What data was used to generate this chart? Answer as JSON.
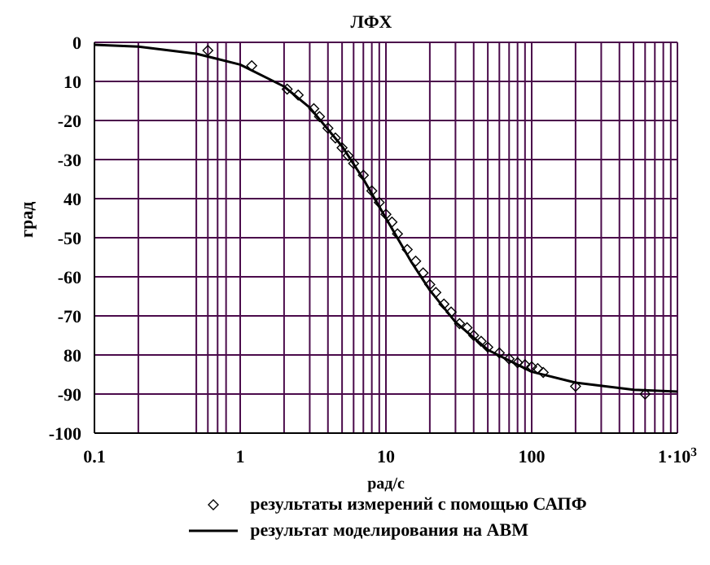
{
  "chart_data": {
    "type": "line",
    "title": "ЛФХ",
    "xlabel": "рад/с",
    "ylabel": "град",
    "log": "x",
    "grid": true,
    "legend": "bottom",
    "xlim": [
      0.1,
      1000
    ],
    "xticks": [
      0.1,
      {
        "value": 0.2,
        "label": null
      },
      {
        "value": 0.5,
        "label": null
      },
      {
        "value": 0.6,
        "label": null
      },
      {
        "value": 0.7,
        "label": null
      },
      {
        "value": 0.8,
        "label": null
      },
      1,
      {
        "value": 2,
        "label": null
      },
      {
        "value": 3,
        "label": null
      },
      {
        "value": 4,
        "label": null
      },
      {
        "value": 5,
        "label": null
      },
      {
        "value": 6,
        "label": null
      },
      {
        "value": 7,
        "label": null
      },
      {
        "value": 8,
        "label": null
      },
      {
        "value": 9,
        "label": null
      },
      10,
      {
        "value": 20,
        "label": null
      },
      {
        "value": 30,
        "label": null
      },
      {
        "value": 40,
        "label": null
      },
      {
        "value": 50,
        "label": null
      },
      {
        "value": 60,
        "label": null
      },
      {
        "value": 70,
        "label": null
      },
      {
        "value": 80,
        "label": null
      },
      {
        "value": 90,
        "label": null
      },
      100,
      {
        "value": 200,
        "label": null
      },
      {
        "value": 300,
        "label": null
      },
      {
        "value": 400,
        "label": null
      },
      {
        "value": 500,
        "label": null
      },
      {
        "value": 600,
        "label": null
      },
      {
        "value": 700,
        "label": null
      },
      {
        "value": 800,
        "label": null
      },
      {
        "value": 900,
        "label": null
      },
      {
        "value": 1000,
        "label": "1·10$^{3}$"
      }
    ],
    "ylim": [
      -100,
      0
    ],
    "yticks": [
      0,
      {
        "value": -10,
        "label": "10"
      },
      -20,
      -30,
      {
        "value": -40,
        "label": "40"
      },
      -50,
      -60,
      -70,
      {
        "value": -80,
        "label": "80"
      },
      -90,
      -100
    ],
    "series": [
      {
        "name": "результаты измерений с помощью САПФ",
        "type": "scatter",
        "marker": "diamond",
        "color": "#000000",
        "x": [
          0.6,
          1.2,
          2.1,
          2.5,
          3.2,
          3.5,
          4,
          4.5,
          5,
          5.5,
          6,
          7,
          8,
          9,
          10,
          11,
          12,
          14,
          16,
          18,
          20,
          22,
          25,
          28,
          32,
          36,
          40,
          45,
          50,
          60,
          70,
          80,
          90,
          100,
          110,
          120,
          200,
          600
        ],
        "values": [
          -2.1,
          -6,
          -12,
          -13.5,
          -17,
          -19,
          -22,
          -24.5,
          -27,
          -29,
          -31,
          -34,
          -38,
          -41,
          -44,
          -46,
          -49,
          -53,
          -56,
          -59,
          -62,
          -64,
          -67,
          -69,
          -72,
          -73,
          -75,
          -76.5,
          -78,
          -79.5,
          -81,
          -82,
          -82.5,
          -83,
          -83.5,
          -84.5,
          -88,
          -90
        ]
      },
      {
        "name": "результат моделирования на АВМ",
        "type": "line",
        "marker": "none",
        "line_style": "solid",
        "color": "#000000",
        "x": [
          0.1,
          0.2,
          0.5,
          1,
          2,
          3,
          5,
          7,
          10,
          15,
          20,
          30,
          50,
          100,
          200,
          500,
          1000
        ],
        "values": [
          -0.6,
          -1.1,
          -2.9,
          -5.7,
          -11.3,
          -16.7,
          -26.6,
          -35,
          -45,
          -56.3,
          -63.4,
          -71.6,
          -78.7,
          -84.3,
          -87.1,
          -88.9,
          -89.4
        ]
      }
    ]
  }
}
